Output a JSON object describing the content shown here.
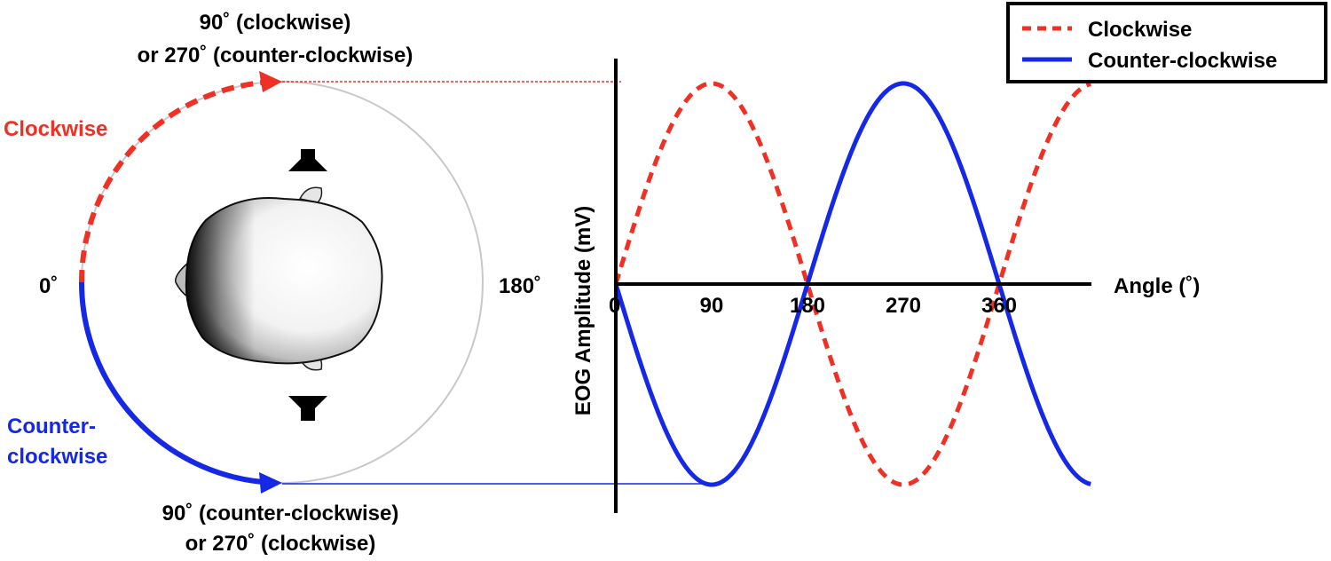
{
  "colors": {
    "clockwise": "#ee3124",
    "counter_clockwise": "#1428e6",
    "axis": "#000000",
    "circle": "#c8c8c8",
    "text": "#000000"
  },
  "diagram": {
    "top_label_line1": "90˚ (clockwise)",
    "top_label_line2": "or 270˚ (counter-clockwise)",
    "bottom_label_line1": "90˚ (counter-clockwise)",
    "bottom_label_line2": "or 270˚ (clockwise)",
    "clockwise_label": "Clockwise",
    "ccw_label_line1": "Counter-",
    "ccw_label_line2": "clockwise",
    "angle_0": "0˚",
    "angle_180": "180˚"
  },
  "chart_data": {
    "type": "line",
    "xlabel": "Angle (˚)",
    "ylabel": "EOG Amplitude (mV)",
    "x_ticks": [
      "0",
      "90",
      "180",
      "270",
      "360"
    ],
    "xlim": [
      0,
      450
    ],
    "ylim": [
      -1,
      1
    ],
    "legend_placement": "top-right",
    "series": [
      {
        "name": "Clockwise",
        "line_style": "dashed",
        "color": "#ee3124",
        "function": "sin",
        "x": [
          0,
          90,
          180,
          270,
          360,
          450
        ],
        "values": [
          0,
          1,
          0,
          -1,
          0,
          1
        ]
      },
      {
        "name": "Counter-clockwise",
        "line_style": "solid",
        "color": "#1428e6",
        "function": "-sin",
        "x": [
          0,
          90,
          180,
          270,
          360,
          450
        ],
        "values": [
          0,
          -1,
          0,
          1,
          0,
          -1
        ]
      }
    ]
  }
}
